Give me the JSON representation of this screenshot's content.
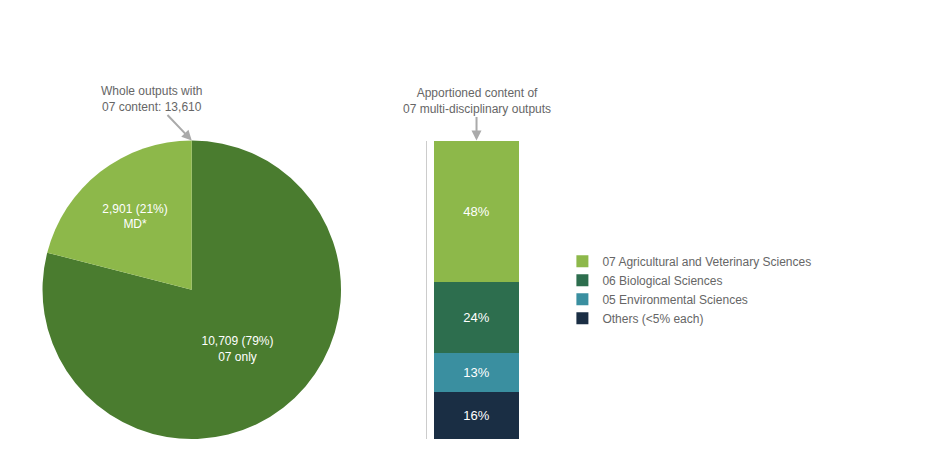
{
  "chart_data": [
    {
      "type": "pie",
      "values": [
        79,
        21
      ],
      "value_labels": [
        "10,709 (79%)\n07 only",
        "2,901 (21%)\nMD*"
      ],
      "colors": [
        "#4a7c2f",
        "#8db84a"
      ],
      "data_labels": true,
      "annotation": "Whole outputs with\n07 content: 13,610"
    },
    {
      "type": "bar",
      "stacked": true,
      "categories": [
        null
      ],
      "series": [
        {
          "name": "07 Agricultural and Veterinary Sciences",
          "color": "#8db84a",
          "values": [
            48
          ],
          "value_labels": [
            "48%"
          ]
        },
        {
          "name": "06 Biological Sciences",
          "color": "#2d6e4e",
          "values": [
            24
          ],
          "value_labels": [
            "24%"
          ]
        },
        {
          "name": "05 Environmental Sciences",
          "color": "#3a8fa0",
          "values": [
            13
          ],
          "value_labels": [
            "13%"
          ]
        },
        {
          "name": "Others (<5% each)",
          "color": "#1a2e44",
          "values": [
            16
          ],
          "value_labels": [
            "16%"
          ]
        }
      ],
      "ylim": [
        0,
        101
      ],
      "tick_labels": false,
      "grid": false,
      "data_labels": true,
      "legend": "right",
      "annotation": "Apportioned content of\n07 multi-disciplinary outputs"
    }
  ]
}
